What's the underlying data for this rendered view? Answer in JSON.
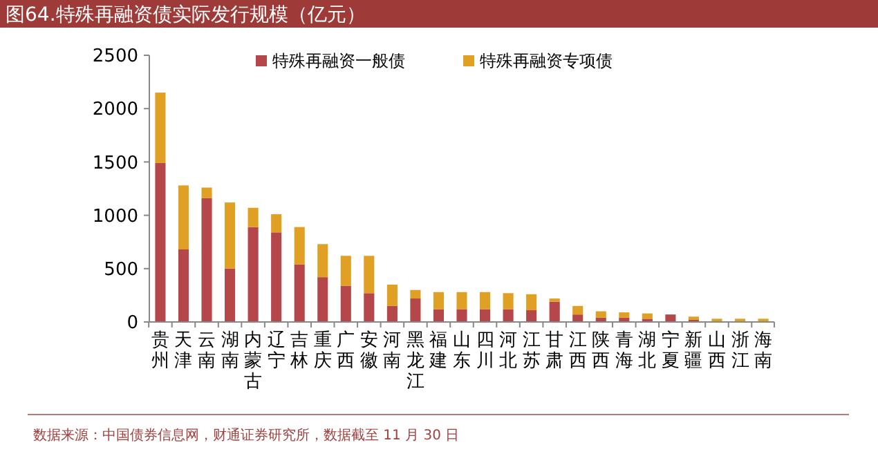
{
  "chart_data": {
    "type": "bar",
    "stacked": true,
    "title": "图64.特殊再融资债实际发行规模（亿元）",
    "categories": [
      "贵州",
      "天津",
      "云南",
      "湖南",
      "内蒙古",
      "辽宁",
      "吉林",
      "重庆",
      "广西",
      "安徽",
      "河南",
      "黑龙江",
      "福建",
      "山东",
      "四川",
      "河北",
      "江苏",
      "甘肃",
      "江西",
      "陕西",
      "青海",
      "湖北",
      "宁夏",
      "新疆",
      "山西",
      "浙江",
      "海南"
    ],
    "series": [
      {
        "name": "特殊再融资一般债",
        "color": "#b5474a",
        "values": [
          1490,
          680,
          1160,
          500,
          890,
          840,
          540,
          420,
          340,
          270,
          150,
          220,
          120,
          120,
          120,
          120,
          110,
          190,
          70,
          40,
          40,
          30,
          70,
          20,
          0,
          0,
          0
        ]
      },
      {
        "name": "特殊再融资专项债",
        "color": "#e0a024",
        "values": [
          660,
          600,
          100,
          620,
          180,
          170,
          350,
          310,
          280,
          350,
          200,
          80,
          160,
          160,
          160,
          150,
          150,
          30,
          80,
          60,
          50,
          50,
          0,
          30,
          30,
          30,
          30
        ]
      }
    ],
    "ylim": [
      0,
      2500
    ],
    "yticks": [
      0,
      500,
      1000,
      1500,
      2000,
      2500
    ],
    "grid": false,
    "legend": "top",
    "annotations": [
      "数据来源：中国债券信息网，财通证券研究所，数据截至 11 月 30 日"
    ]
  }
}
